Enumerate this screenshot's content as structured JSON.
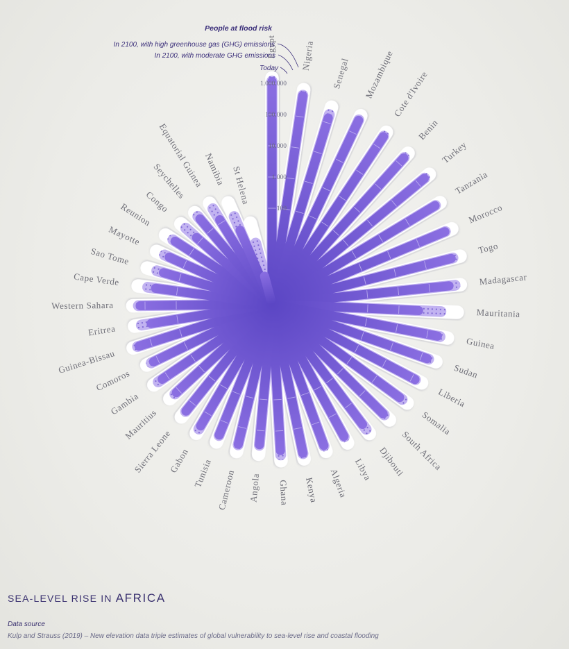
{
  "header": {
    "title_prefix": "SEA-LEVEL RISE IN",
    "title_region": "AFRICA"
  },
  "source": {
    "label": "Data source",
    "text": "Kulp and Strauss (2019)  –  New elevation data triple estimates of global vulnerability to sea-level rise and coastal flooding"
  },
  "colors": {
    "today": "#7b5ed8",
    "moderate": "#b6a4ee",
    "high": "#ffffff",
    "text": "#3b3270"
  },
  "chart_data": {
    "type": "radial-bar",
    "scale": "log",
    "legend_title": "People at flood risk",
    "series": [
      {
        "name": "In 2100, with high greenhouse gas (GHG) emissions",
        "key": "high"
      },
      {
        "name": "In 2100, with moderate GHG emissions",
        "key": "moderate"
      },
      {
        "name": "Today",
        "key": "today"
      }
    ],
    "axis_ticks": [
      {
        "value": 100,
        "label": "100"
      },
      {
        "value": 1000,
        "label": "1.000"
      },
      {
        "value": 10000,
        "label": "10.000"
      },
      {
        "value": 100000,
        "label": "100.000"
      },
      {
        "value": 1000000,
        "label": "1.000.000"
      }
    ],
    "countries": [
      "Egypt",
      "Nigeria",
      "Senegal",
      "Mozambique",
      "Cote d'Ivoire",
      "Benin",
      "Turkey",
      "Tanzania",
      "Morocco",
      "Togo",
      "Madagascar",
      "Mauritania",
      "Guinea",
      "Sudan",
      "Liberia",
      "Somalia",
      "South Africa",
      "Djibouti",
      "Libya",
      "Algeria",
      "Kenya",
      "Ghana",
      "Angola",
      "Cameroon",
      "Tunisia",
      "Gabon",
      "Sierra Leone",
      "Mauritius",
      "Gambia",
      "Comoros",
      "Guinea-Bissau",
      "Eritrea",
      "Western Sahara",
      "Cape Verde",
      "Sao Tome",
      "Mayotte",
      "Reunion",
      "Congo",
      "Seychelles",
      "Equatorial Guinea",
      "Namibia",
      "St Helena"
    ],
    "today": [
      1600000,
      660000,
      200000,
      380000,
      330000,
      240000,
      250000,
      150000,
      120000,
      100000,
      60000,
      6000,
      30000,
      22000,
      18000,
      14000,
      12000,
      8000,
      8000,
      8000,
      9000,
      6000,
      4000,
      5000,
      4000,
      4000,
      3000,
      1800,
      2200,
      2000,
      3500,
      1000,
      2000,
      700,
      500,
      500,
      600,
      200,
      450,
      180,
      45,
      1
    ],
    "moderate": [
      1600000,
      660000,
      250000,
      380000,
      330000,
      240000,
      250000,
      150000,
      120000,
      110000,
      90000,
      30000,
      35000,
      24000,
      18000,
      17000,
      13000,
      12000,
      8000,
      8000,
      9000,
      8000,
      4000,
      5000,
      4000,
      5000,
      3000,
      2000,
      3000,
      2300,
      3800,
      2000,
      2200,
      1200,
      800,
      700,
      700,
      550,
      550,
      450,
      130,
      12
    ],
    "high": [
      1800000,
      900000,
      400000,
      480000,
      420000,
      330000,
      350000,
      200000,
      180000,
      170000,
      120000,
      90000,
      55000,
      38000,
      27000,
      24000,
      20000,
      16000,
      12000,
      11000,
      12000,
      11000,
      7000,
      7500,
      6000,
      6500,
      4500,
      3000,
      4000,
      3000,
      4800,
      3000,
      3000,
      2200,
      1500,
      1200,
      1200,
      800,
      700,
      650,
      350,
      50
    ]
  }
}
